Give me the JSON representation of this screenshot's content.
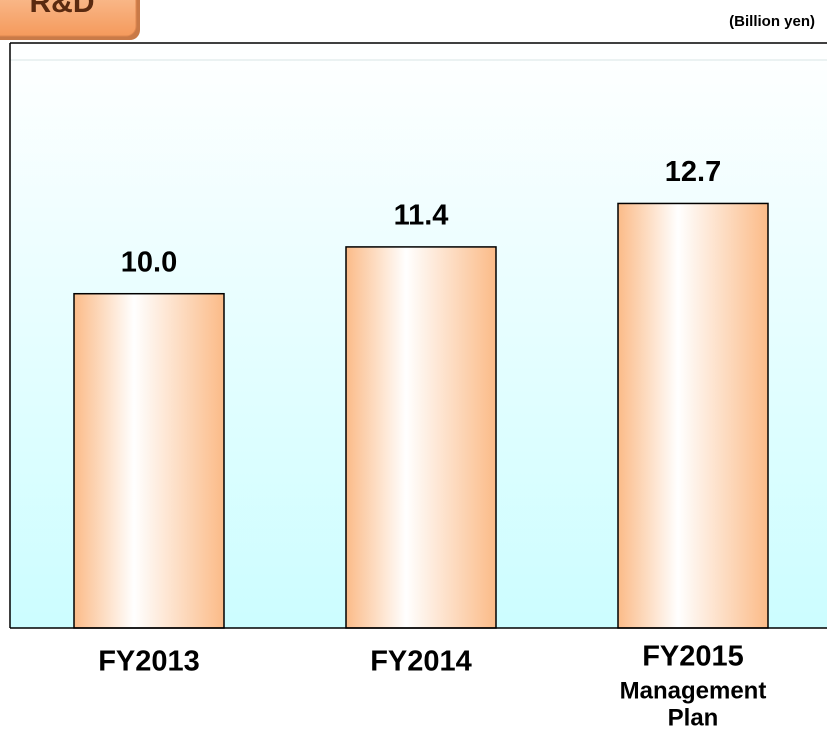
{
  "chart_data": {
    "type": "bar",
    "title": "R&D",
    "unit": "(Billion yen)",
    "categories": [
      "FY2013",
      "FY2014",
      "FY2015"
    ],
    "annotations": [
      "Management",
      "Plan"
    ],
    "values": [
      10.0,
      11.4,
      12.7
    ],
    "value_labels": [
      "10.0",
      "11.4",
      "12.7"
    ],
    "color": "#fbbb88",
    "ylim": [
      0,
      17.5
    ]
  }
}
